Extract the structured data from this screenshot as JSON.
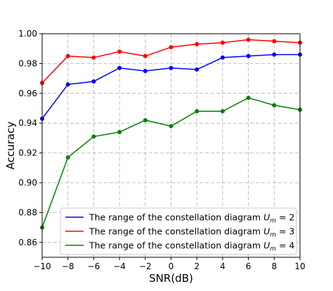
{
  "chart_data": {
    "type": "line",
    "title": "",
    "xlabel": "SNR(dB)",
    "ylabel": "Accuracy",
    "x": [
      -10,
      -8,
      -6,
      -4,
      -2,
      0,
      2,
      4,
      6,
      8,
      10
    ],
    "xlim": [
      -10,
      10
    ],
    "ylim": [
      0.85,
      1.0
    ],
    "xticks": [
      "−10",
      "−8",
      "−6",
      "−4",
      "−2",
      "0",
      "2",
      "4",
      "6",
      "8",
      "10"
    ],
    "yticks": [
      "0.86",
      "0.88",
      "0.90",
      "0.92",
      "0.94",
      "0.96",
      "0.98",
      "1.00"
    ],
    "grid": true,
    "legend_position": "lower-right",
    "series": [
      {
        "legend_prefix": "The range of the constellation diagram ",
        "legend_var": "U",
        "legend_sub": "m",
        "legend_suffix": " = 2",
        "color": "#0000ff",
        "values": [
          0.943,
          0.966,
          0.968,
          0.977,
          0.975,
          0.977,
          0.976,
          0.984,
          0.985,
          0.986,
          0.986
        ]
      },
      {
        "legend_prefix": "The range of the constellation diagram ",
        "legend_var": "U",
        "legend_sub": "m",
        "legend_suffix": " = 3",
        "color": "#ff0000",
        "values": [
          0.967,
          0.985,
          0.984,
          0.988,
          0.985,
          0.991,
          0.993,
          0.994,
          0.996,
          0.995,
          0.994
        ]
      },
      {
        "legend_prefix": "The range of the constellation diagram ",
        "legend_var": "U",
        "legend_sub": "m",
        "legend_suffix": " = 4",
        "color": "#008000",
        "values": [
          0.87,
          0.917,
          0.931,
          0.934,
          0.942,
          0.938,
          0.948,
          0.948,
          0.957,
          0.952,
          0.949
        ]
      }
    ]
  }
}
